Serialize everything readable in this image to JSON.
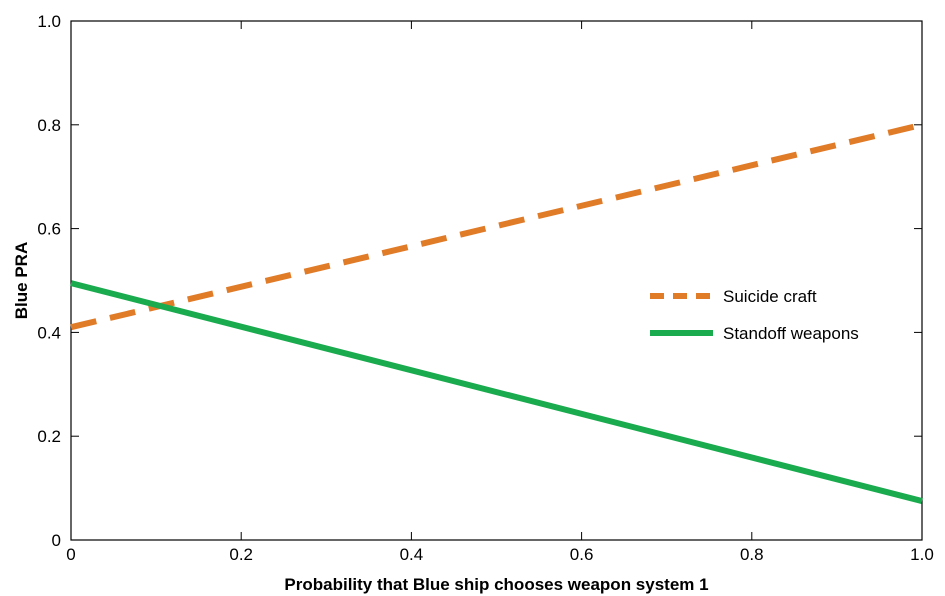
{
  "chart_data": {
    "type": "line",
    "xlabel": "Probability that Blue ship chooses weapon system 1",
    "ylabel": "Blue PRA",
    "xlim": [
      0,
      1
    ],
    "ylim": [
      0,
      1
    ],
    "x_ticks": [
      0,
      0.2,
      0.4,
      0.6,
      0.8,
      1.0
    ],
    "y_ticks": [
      0,
      0.2,
      0.4,
      0.6,
      0.8,
      1.0
    ],
    "x_tick_labels": [
      "0",
      "0.2",
      "0.4",
      "0.6",
      "0.8",
      "1.0"
    ],
    "y_tick_labels": [
      "0",
      "0.2",
      "0.4",
      "0.6",
      "0.8",
      "1.0"
    ],
    "grid": false,
    "legend_position": "right",
    "series": [
      {
        "name": "Suicide craft",
        "x": [
          0,
          1
        ],
        "y": [
          0.41,
          0.8
        ],
        "color": "#E07B28",
        "style": "dashed"
      },
      {
        "name": "Standoff weapons",
        "x": [
          0,
          1
        ],
        "y": [
          0.495,
          0.075
        ],
        "color": "#1AAB4F",
        "style": "solid"
      }
    ]
  }
}
